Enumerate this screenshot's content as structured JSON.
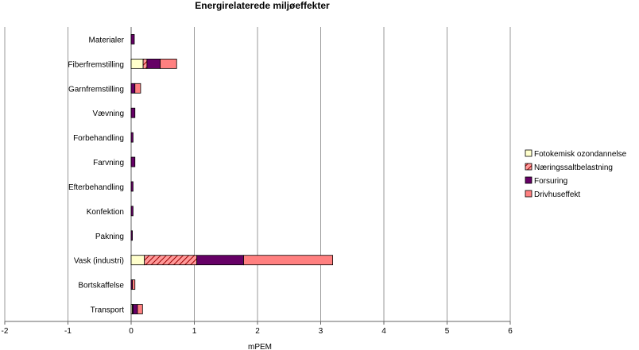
{
  "chart_data": {
    "type": "bar",
    "orientation": "horizontal",
    "stacked": true,
    "title": "Energirelaterede miljøeffekter",
    "xlabel": "mPEM",
    "ylabel": "",
    "xlim": [
      -2,
      6
    ],
    "xticks": [
      -2,
      -1,
      0,
      1,
      2,
      3,
      4,
      5,
      6
    ],
    "grid": "vertical",
    "legend_position": "right",
    "categories": [
      "Materialer",
      "Fiberfremstilling",
      "Garnfremstilling",
      "Vævning",
      "Forbehandling",
      "Farvning",
      "Efterbehandling",
      "Konfektion",
      "Pakning",
      "Vask (industri)",
      "Bortskaffelse",
      "Transport"
    ],
    "series": [
      {
        "name": "Fotokemisk ozondannelse",
        "color": "#FFFFCC",
        "pattern": "none",
        "values": [
          0.0,
          0.19,
          0.0,
          0.0,
          0.0,
          0.0,
          0.0,
          0.0,
          0.0,
          0.21,
          0.0,
          0.02
        ]
      },
      {
        "name": "Næringssaltbelastning",
        "color": "#CC3333",
        "pattern": "hatch",
        "values": [
          0.0,
          0.06,
          0.0,
          0.0,
          0.0,
          0.0,
          0.0,
          0.0,
          0.0,
          0.83,
          0.0,
          0.01
        ]
      },
      {
        "name": "Forsuring",
        "color": "#660066",
        "pattern": "none",
        "values": [
          0.05,
          0.21,
          0.06,
          0.06,
          0.03,
          0.06,
          0.03,
          0.03,
          0.02,
          0.74,
          0.02,
          0.07
        ]
      },
      {
        "name": "Drivhuseffekt",
        "color": "#FF8080",
        "pattern": "none",
        "values": [
          0.0,
          0.26,
          0.09,
          0.0,
          0.0,
          0.0,
          0.0,
          0.0,
          0.0,
          1.41,
          0.04,
          0.08
        ]
      }
    ]
  }
}
